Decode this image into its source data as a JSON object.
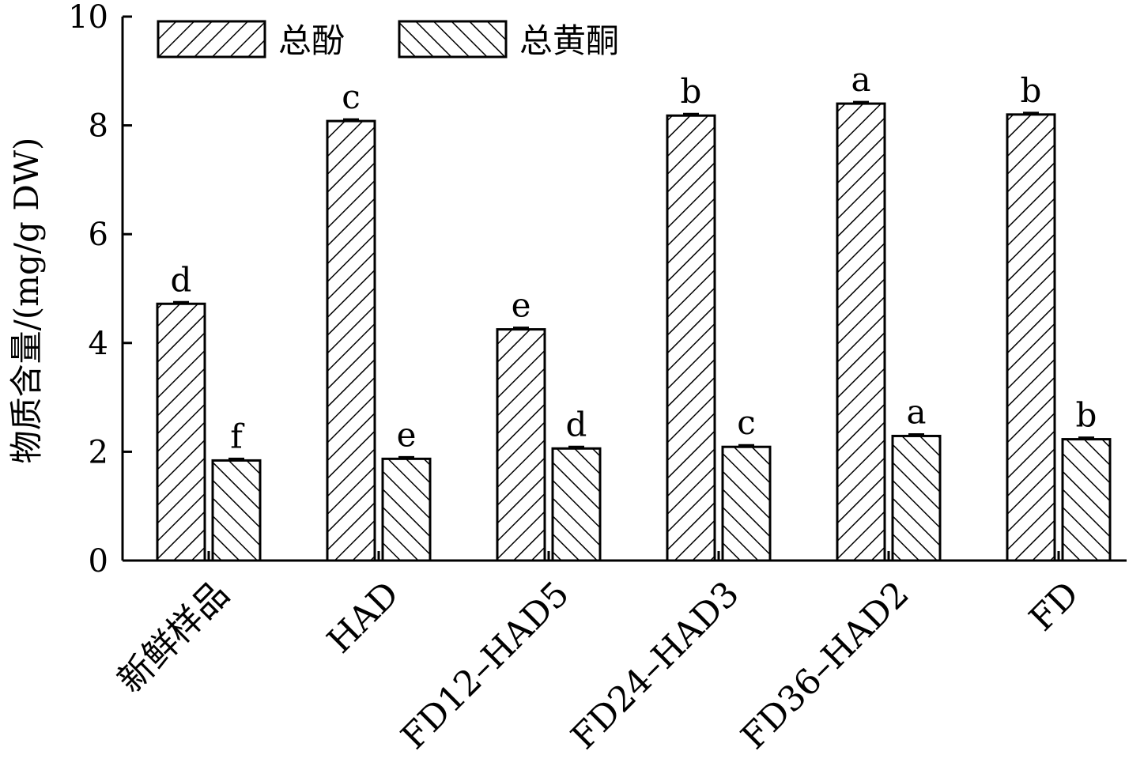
{
  "chart_data": {
    "type": "bar",
    "title": "",
    "xlabel": "",
    "ylabel": "物质含量/(mg/g DW)",
    "ylim": [
      0,
      10
    ],
    "yticks": [
      0,
      2,
      4,
      6,
      8,
      10
    ],
    "categories": [
      "新鲜样品",
      "HAD",
      "FD12–HAD5",
      "FD24–HAD3",
      "FD36–HAD2",
      "FD"
    ],
    "series": [
      {
        "name": "总酚",
        "pattern": "forward-hatch",
        "values": [
          4.72,
          8.08,
          4.25,
          8.18,
          8.4,
          8.2
        ],
        "letters": [
          "d",
          "c",
          "e",
          "b",
          "a",
          "b"
        ]
      },
      {
        "name": "总黄酮",
        "pattern": "back-hatch",
        "values": [
          1.84,
          1.87,
          2.06,
          2.09,
          2.29,
          2.23
        ],
        "letters": [
          "f",
          "e",
          "d",
          "c",
          "a",
          "b"
        ]
      }
    ],
    "legend_position": "top-left",
    "grid": false,
    "colors": {
      "bar_fill": "#ffffff",
      "stroke": "#000000"
    }
  }
}
